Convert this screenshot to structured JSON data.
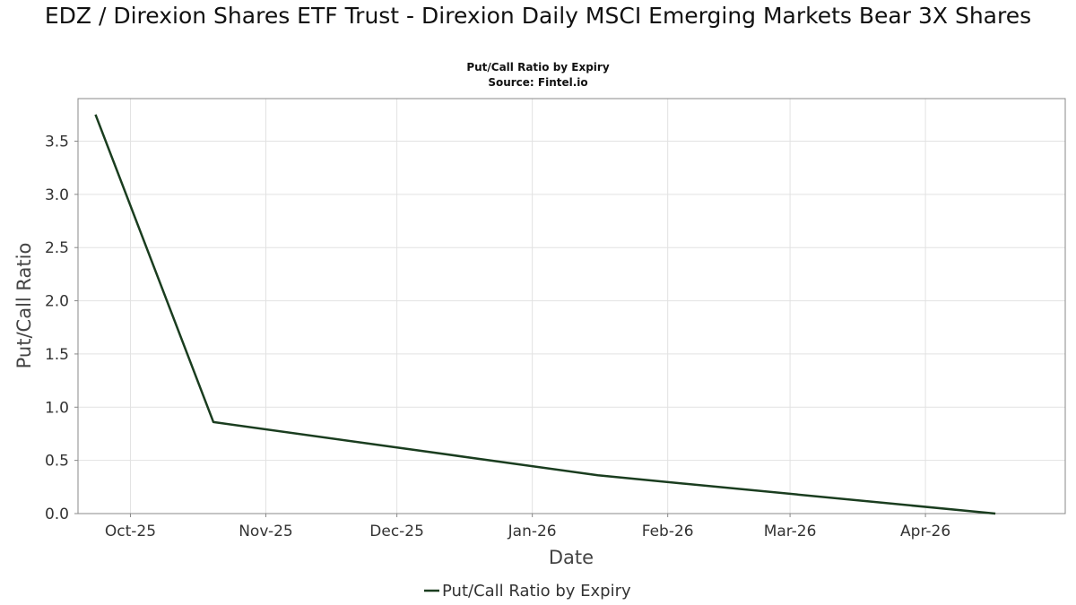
{
  "chart_data": {
    "type": "line",
    "title": "EDZ / Direxion Shares ETF Trust - Direxion Daily MSCI Emerging Markets Bear 3X Shares",
    "subtitle": "Put/Call Ratio by Expiry",
    "source": "Source: Fintel.io",
    "xlabel": "Date",
    "ylabel": "Put/Call Ratio",
    "x_ticks": [
      {
        "date": "2025-10-01",
        "label": "Oct-25"
      },
      {
        "date": "2025-11-01",
        "label": "Nov-25"
      },
      {
        "date": "2025-12-01",
        "label": "Dec-25"
      },
      {
        "date": "2026-01-01",
        "label": "Jan-26"
      },
      {
        "date": "2026-02-01",
        "label": "Feb-26"
      },
      {
        "date": "2026-03-01",
        "label": "Mar-26"
      },
      {
        "date": "2026-04-01",
        "label": "Apr-26"
      }
    ],
    "y_ticks": [
      "0.0",
      "0.5",
      "1.0",
      "1.5",
      "2.0",
      "2.5",
      "3.0",
      "3.5"
    ],
    "xlim": [
      "2025-09-19",
      "2026-05-03"
    ],
    "ylim": [
      0,
      3.9
    ],
    "grid": true,
    "legend_position": "bottom-center",
    "series": [
      {
        "name": "Put/Call Ratio by Expiry",
        "color": "#1a3d1f",
        "points": [
          {
            "x": "2025-09-23",
            "y": 3.75
          },
          {
            "x": "2025-10-20",
            "y": 0.86
          },
          {
            "x": "2026-01-16",
            "y": 0.36
          },
          {
            "x": "2026-04-17",
            "y": 0.0
          }
        ]
      }
    ]
  }
}
